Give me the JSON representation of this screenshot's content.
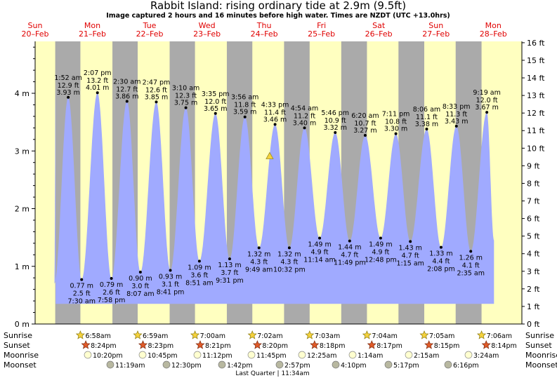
{
  "title": "Rabbit Island: rising  ordinary tide at 2.9m (9.5ft)",
  "subtitle": "Image captured 2 hours and 16 minutes before high water. Times are NZDT (UTC +13.0hrs)",
  "colors": {
    "day": "#ffffc0",
    "night": "#aaaaaa",
    "tide": "#a0aaff",
    "date_red": "#e00000",
    "sun": "#f5d23c",
    "sun_set": "#e05a28",
    "moon_rise": "#ffffd0",
    "moon_set": "#b8b8a0"
  },
  "row_labels": {
    "sunrise": "Sunrise",
    "sunset": "Sunset",
    "moonrise": "Moonrise",
    "moonset": "Moonset"
  },
  "moon_phase": "Last Quarter | 11:34am",
  "chart_data": {
    "type": "area",
    "xlabel": "",
    "ylabel": "",
    "ylim": [
      0,
      4.9
    ],
    "y_ticks_m": [
      "0 m",
      "1 m",
      "2 m",
      "3 m",
      "4 m"
    ],
    "y_ticks_ft": [
      "0 ft",
      "1 ft",
      "2 ft",
      "3 ft",
      "4 ft",
      "5 ft",
      "6 ft",
      "7 ft",
      "8 ft",
      "9 ft",
      "10 ft",
      "11 ft",
      "12 ft",
      "13 ft",
      "14 ft",
      "15 ft",
      "16 ft"
    ],
    "days": [
      {
        "weekday": "Sun",
        "date": "20–Feb"
      },
      {
        "weekday": "Mon",
        "date": "21–Feb"
      },
      {
        "weekday": "Tue",
        "date": "22–Feb"
      },
      {
        "weekday": "Wed",
        "date": "23–Feb"
      },
      {
        "weekday": "Thu",
        "date": "24–Feb"
      },
      {
        "weekday": "Fri",
        "date": "25–Feb"
      },
      {
        "weekday": "Sat",
        "date": "26–Feb"
      },
      {
        "weekday": "Sun",
        "date": "27–Feb"
      },
      {
        "weekday": "Mon",
        "date": "28–Feb"
      }
    ],
    "high_tides": [
      {
        "time": "1:52 am",
        "ft": "12.9 ft",
        "m": "3.93 m",
        "value": 3.93,
        "hour": 25.87
      },
      {
        "time": "2:07 pm",
        "ft": "13.2 ft",
        "m": "4.01 m",
        "value": 4.01,
        "hour": 38.12
      },
      {
        "time": "2:30 am",
        "ft": "12.7 ft",
        "m": "3.86 m",
        "value": 3.86,
        "hour": 50.5
      },
      {
        "time": "2:47 pm",
        "ft": "12.6 ft",
        "m": "3.85 m",
        "value": 3.85,
        "hour": 62.78
      },
      {
        "time": "3:10 am",
        "ft": "12.3 ft",
        "m": "3.75 m",
        "value": 3.75,
        "hour": 75.17
      },
      {
        "time": "3:35 pm",
        "ft": "12.0 ft",
        "m": "3.65 m",
        "value": 3.65,
        "hour": 87.58
      },
      {
        "time": "3:56 am",
        "ft": "11.8 ft",
        "m": "3.59 m",
        "value": 3.59,
        "hour": 99.93
      },
      {
        "time": "4:33 pm",
        "ft": "11.4 ft",
        "m": "3.46 m",
        "value": 3.46,
        "hour": 112.55
      },
      {
        "time": "4:54 am",
        "ft": "11.2 ft",
        "m": "3.40 m",
        "value": 3.4,
        "hour": 124.9
      },
      {
        "time": "5:46 pm",
        "ft": "10.9 ft",
        "m": "3.32 m",
        "value": 3.32,
        "hour": 137.77
      },
      {
        "time": "6:20 am",
        "ft": "10.7 ft",
        "m": "3.27 m",
        "value": 3.27,
        "hour": 150.33
      },
      {
        "time": "7:11 pm",
        "ft": "10.8 ft",
        "m": "3.30 m",
        "value": 3.3,
        "hour": 163.18
      },
      {
        "time": "8:06 am",
        "ft": "11.1 ft",
        "m": "3.38 m",
        "value": 3.38,
        "hour": 176.1
      },
      {
        "time": "8:33 pm",
        "ft": "11.3 ft",
        "m": "3.43 m",
        "value": 3.43,
        "hour": 188.55
      },
      {
        "time": "9:19 am",
        "ft": "12.0 ft",
        "m": "3.67 m",
        "value": 3.67,
        "hour": 201.32
      }
    ],
    "low_tides": [
      {
        "time": "7:30 am",
        "ft": "2.5 ft",
        "m": "0.77 m",
        "value": 0.77,
        "hour": 31.5
      },
      {
        "time": "7:58 pm",
        "ft": "2.6 ft",
        "m": "0.79 m",
        "value": 0.79,
        "hour": 43.97
      },
      {
        "time": "8:07 am",
        "ft": "3.0 ft",
        "m": "0.90 m",
        "value": 0.9,
        "hour": 56.12
      },
      {
        "time": "8:41 pm",
        "ft": "3.1 ft",
        "m": "0.93 m",
        "value": 0.93,
        "hour": 68.68
      },
      {
        "time": "8:51 am",
        "ft": "3.6 ft",
        "m": "1.09 m",
        "value": 1.09,
        "hour": 80.85
      },
      {
        "time": "9:31 pm",
        "ft": "3.7 ft",
        "m": "1.13 m",
        "value": 1.13,
        "hour": 93.52
      },
      {
        "time": "9:49 am",
        "ft": "4.3 ft",
        "m": "1.32 m",
        "value": 1.32,
        "hour": 105.82
      },
      {
        "time": "10:32 pm",
        "ft": "4.3 ft",
        "m": "1.32 m",
        "value": 1.32,
        "hour": 118.53
      },
      {
        "time": "11:14 am",
        "ft": "4.9 ft",
        "m": "1.49 m",
        "value": 1.49,
        "hour": 131.23
      },
      {
        "time": "11:49 pm",
        "ft": "4.7 ft",
        "m": "1.44 m",
        "value": 1.44,
        "hour": 143.82
      },
      {
        "time": "12:48 pm",
        "ft": "4.9 ft",
        "m": "1.49 m",
        "value": 1.49,
        "hour": 156.8
      },
      {
        "time": "1:15 am",
        "ft": "4.7 ft",
        "m": "1.43 m",
        "value": 1.43,
        "hour": 169.25
      },
      {
        "time": "2:08 pm",
        "ft": "4.4 ft",
        "m": "1.33 m",
        "value": 1.33,
        "hour": 182.13
      },
      {
        "time": "2:35 am",
        "ft": "4.1 ft",
        "m": "1.26 m",
        "value": 1.26,
        "hour": 194.58
      }
    ],
    "current": {
      "value": 2.9,
      "hour": 110.3
    },
    "sunrise": [
      "6:58am",
      "6:59am",
      "7:00am",
      "7:02am",
      "7:03am",
      "7:04am",
      "7:05am",
      "7:06am"
    ],
    "sunset": [
      "8:24pm",
      "8:23pm",
      "8:21pm",
      "8:20pm",
      "8:18pm",
      "8:17pm",
      "8:15pm",
      "8:14pm"
    ],
    "moonrise": [
      "10:20pm",
      "10:45pm",
      "11:12pm",
      "11:45pm",
      "12:25am",
      "1:14am",
      "2:15am",
      "3:24am"
    ],
    "moonset": [
      "11:19am",
      "12:30pm",
      "1:42pm",
      "2:57pm",
      "4:10pm",
      "5:17pm",
      "6:16pm"
    ]
  }
}
